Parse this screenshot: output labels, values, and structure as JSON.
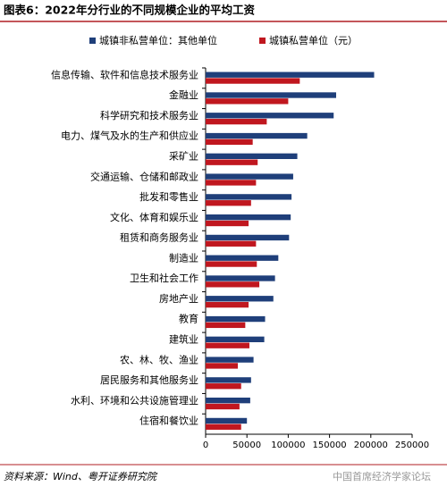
{
  "chart_data": {
    "type": "hbar",
    "title": "图表6：2022年分行业的不同规模企业的平均工资",
    "source": "资料来源：Wind、粤开证券研究院",
    "watermark": "中国首席经济学家论坛",
    "categories": [
      "信息传输、软件和信息技术服务业",
      "金融业",
      "科学研究和技术服务业",
      "电力、煤气及水的生产和供应业",
      "采矿业",
      "交通运输、仓储和邮政业",
      "批发和零售业",
      "文化、体育和娱乐业",
      "租赁和商务服务业",
      "制造业",
      "卫生和社会工作",
      "房地产业",
      "教育",
      "建筑业",
      "农、林、牧、渔业",
      "居民服务和其他服务业",
      "水利、环境和公共设施管理业",
      "住宿和餐饮业"
    ],
    "series": [
      {
        "name": "城镇非私营单位：其他单位",
        "color": "#1f3f7a",
        "values": [
          204000,
          158000,
          155000,
          123000,
          111000,
          106000,
          104000,
          103000,
          101000,
          88000,
          84000,
          82000,
          72000,
          71000,
          58000,
          55000,
          54000,
          50000
        ]
      },
      {
        "name": "城镇私营单位（元）",
        "color": "#c0171f",
        "values": [
          114000,
          100000,
          74000,
          57000,
          63000,
          61000,
          55000,
          52000,
          61000,
          62000,
          65000,
          52000,
          48000,
          53000,
          39000,
          43000,
          41000,
          43000
        ]
      }
    ],
    "xlim": [
      0,
      250000
    ],
    "xticks": [
      0,
      50000,
      100000,
      150000,
      200000,
      250000
    ]
  }
}
